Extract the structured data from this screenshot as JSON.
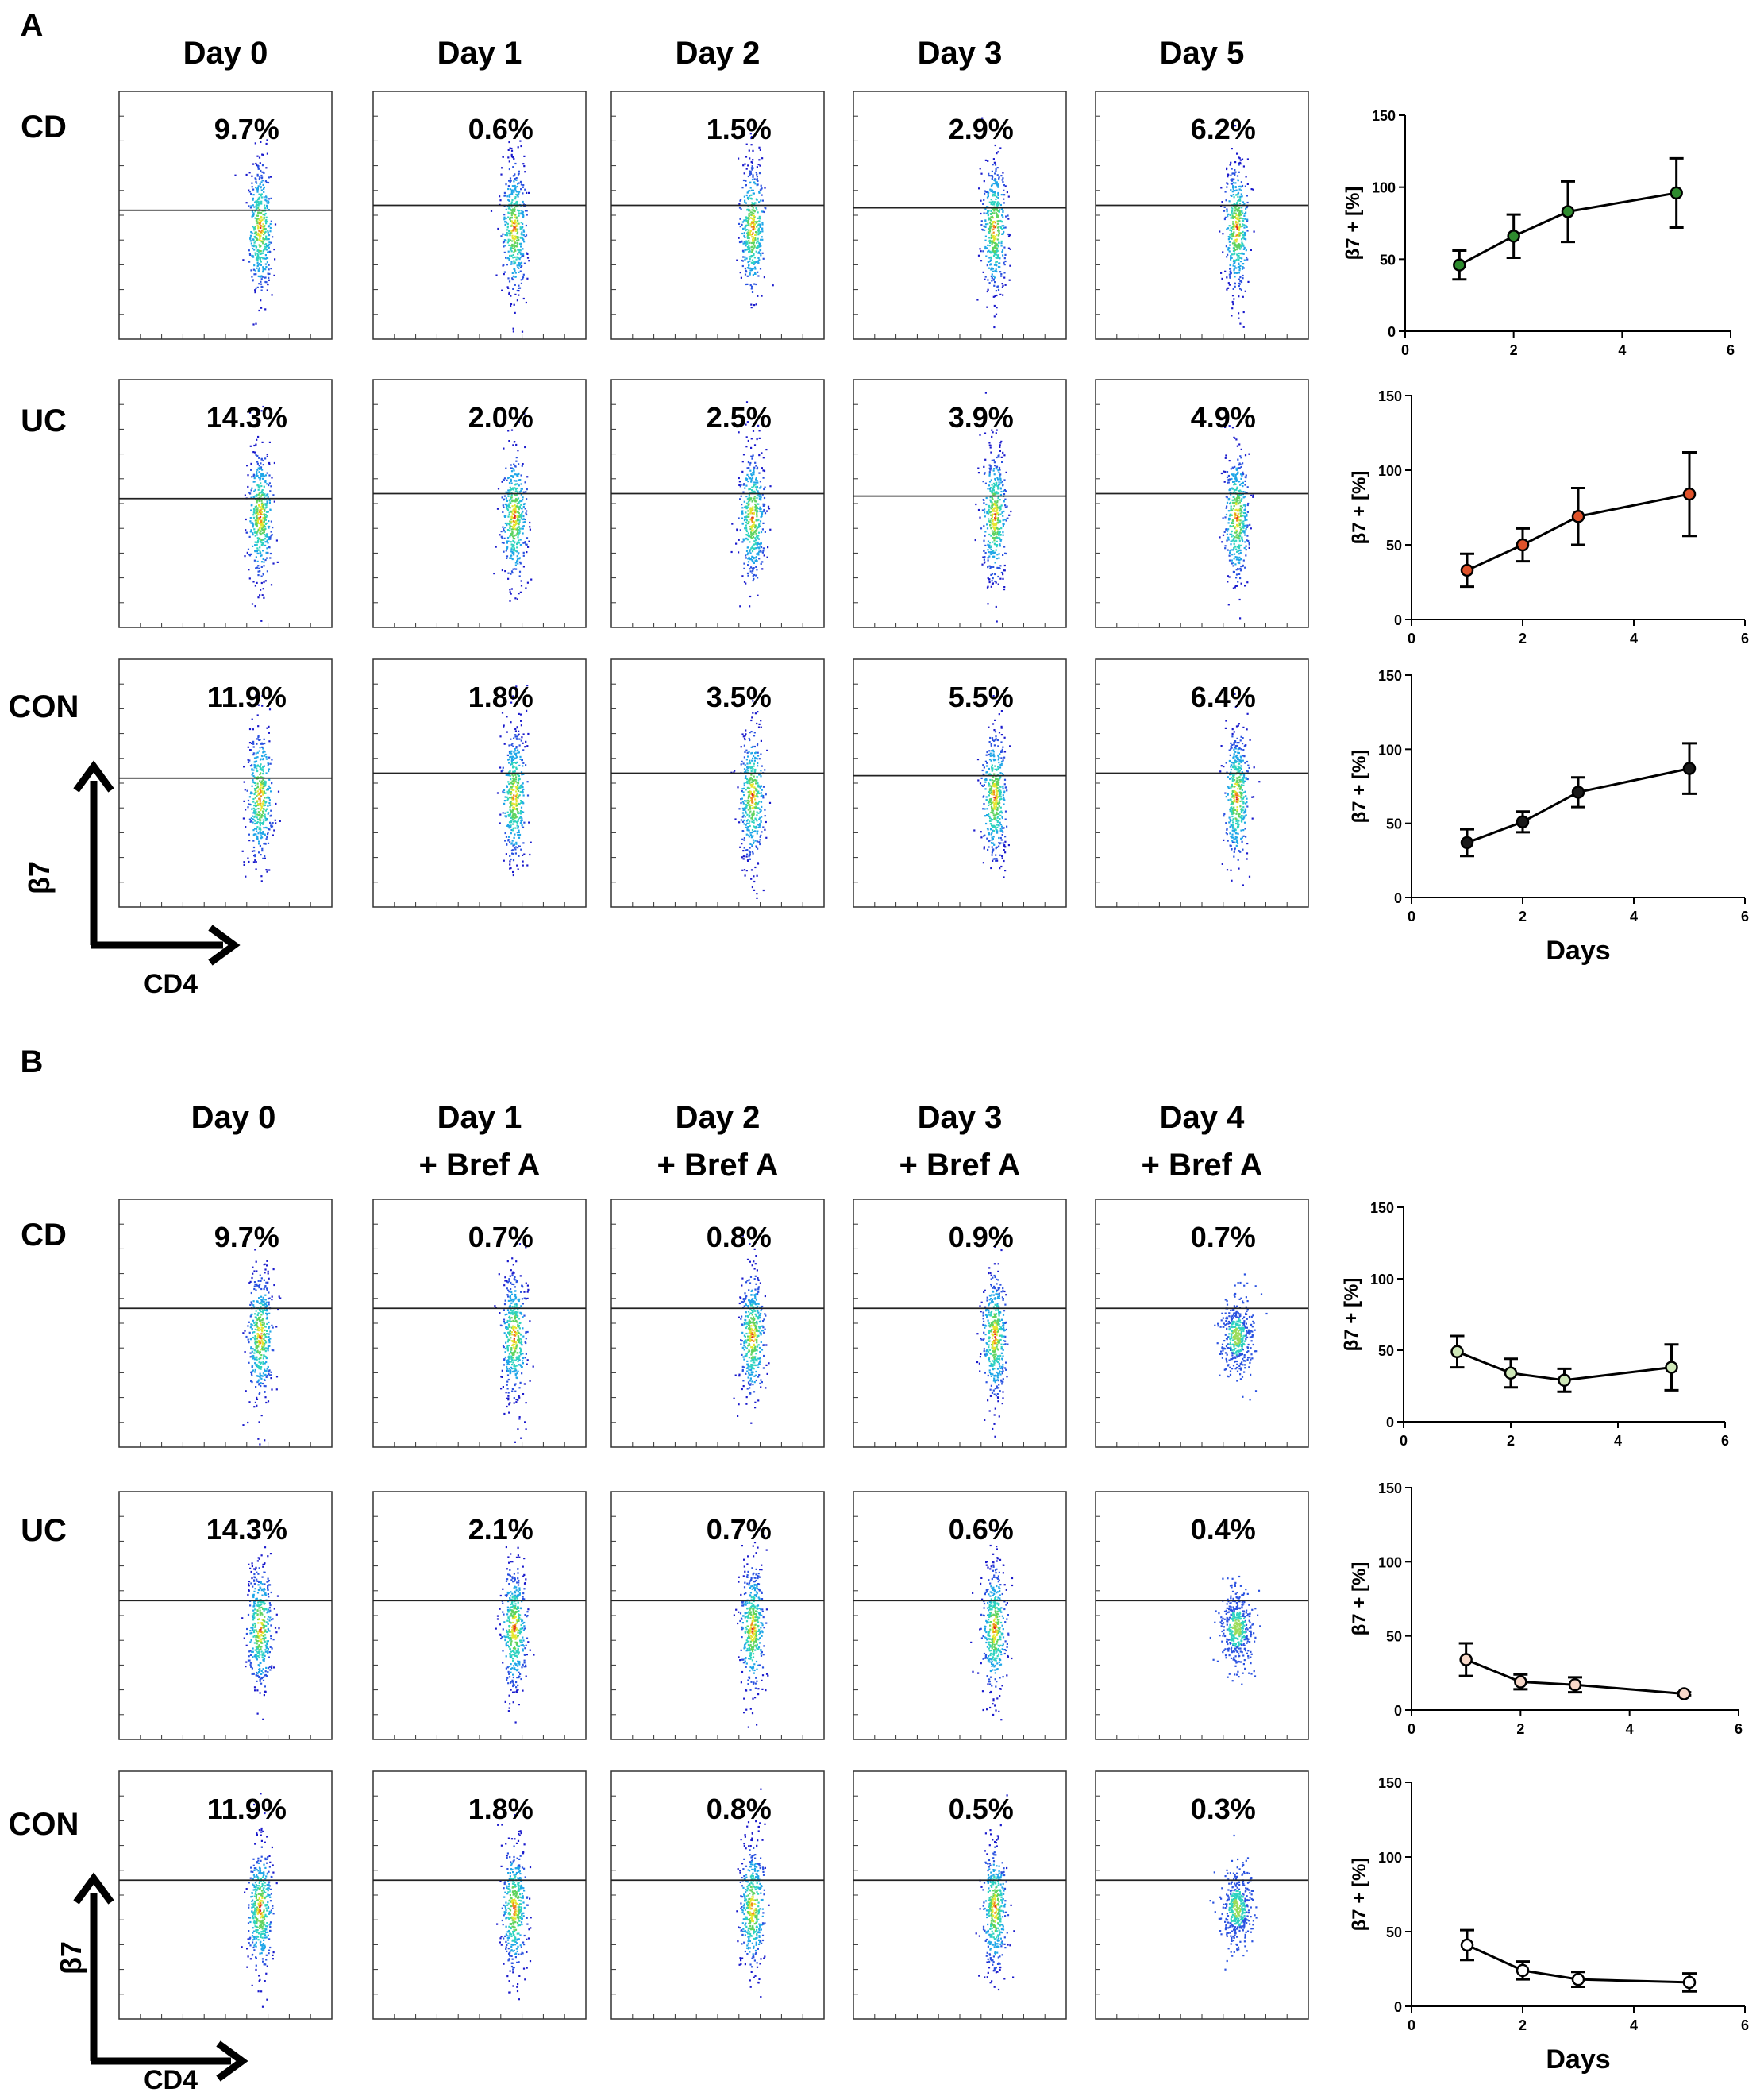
{
  "figure": {
    "panels": [
      {
        "letter": "A",
        "day_headers": [
          [
            "Day 0"
          ],
          [
            "Day 1"
          ],
          [
            "Day 2"
          ],
          [
            "Day 3"
          ],
          [
            "Day 5"
          ]
        ],
        "rows": [
          {
            "label": "CD",
            "percents": [
              "9.7%",
              "0.6%",
              "1.5%",
              "2.9%",
              "6.2%"
            ]
          },
          {
            "label": "UC",
            "percents": [
              "14.3%",
              "2.0%",
              "2.5%",
              "3.9%",
              "4.9%"
            ]
          },
          {
            "label": "CON",
            "percents": [
              "11.9%",
              "1.8%",
              "3.5%",
              "5.5%",
              "6.4%"
            ]
          }
        ],
        "y_axis_label": "β7",
        "x_axis_label": "CD4"
      },
      {
        "letter": "B",
        "day_headers": [
          [
            "Day 0"
          ],
          [
            "Day 1",
            "+ Bref A"
          ],
          [
            "Day 2",
            "+ Bref A"
          ],
          [
            "Day 3",
            "+ Bref A"
          ],
          [
            "Day 4",
            "+ Bref A"
          ]
        ],
        "rows": [
          {
            "label": "CD",
            "percents": [
              "9.7%",
              "0.7%",
              "0.8%",
              "0.9%",
              "0.7%"
            ]
          },
          {
            "label": "UC",
            "percents": [
              "14.3%",
              "2.1%",
              "0.7%",
              "0.6%",
              "0.4%"
            ]
          },
          {
            "label": "CON",
            "percents": [
              "11.9%",
              "1.8%",
              "0.8%",
              "0.5%",
              "0.3%"
            ]
          }
        ],
        "y_axis_label": "β7",
        "x_axis_label": "CD4"
      }
    ]
  },
  "chart_data": [
    {
      "type": "line",
      "panel": "A",
      "group": "CD",
      "marker_color": "#2e8b2e",
      "x": [
        1,
        2,
        3,
        5
      ],
      "y": [
        46,
        66,
        83,
        96
      ],
      "err": [
        10,
        15,
        21,
        24
      ],
      "xlim": [
        0,
        6
      ],
      "ylim": [
        0,
        150
      ],
      "xticks": [
        0,
        2,
        4,
        6
      ],
      "yticks": [
        0,
        50,
        100,
        150
      ],
      "ylabel": "β7 + [%]",
      "xlabel": ""
    },
    {
      "type": "line",
      "panel": "A",
      "group": "UC",
      "marker_color": "#e0522a",
      "x": [
        1,
        2,
        3,
        5
      ],
      "y": [
        33,
        50,
        69,
        84
      ],
      "err": [
        11,
        11,
        19,
        28
      ],
      "xlim": [
        0,
        6
      ],
      "ylim": [
        0,
        150
      ],
      "xticks": [
        0,
        2,
        4,
        6
      ],
      "yticks": [
        0,
        50,
        100,
        150
      ],
      "ylabel": "β7 + [%]",
      "xlabel": ""
    },
    {
      "type": "line",
      "panel": "A",
      "group": "CON",
      "marker_color": "#1a1a1a",
      "x": [
        1,
        2,
        3,
        5
      ],
      "y": [
        37,
        51,
        71,
        87
      ],
      "err": [
        9,
        7,
        10,
        17
      ],
      "xlim": [
        0,
        6
      ],
      "ylim": [
        0,
        150
      ],
      "xticks": [
        0,
        2,
        4,
        6
      ],
      "yticks": [
        0,
        50,
        100,
        150
      ],
      "ylabel": "β7 + [%]",
      "xlabel": "Days"
    },
    {
      "type": "line",
      "panel": "B",
      "group": "CD",
      "marker_color": "#cfe8b8",
      "x": [
        1,
        2,
        3,
        5
      ],
      "y": [
        49,
        34,
        29,
        38
      ],
      "err": [
        11,
        10,
        8,
        16
      ],
      "xlim": [
        0,
        6
      ],
      "ylim": [
        0,
        150
      ],
      "xticks": [
        0,
        2,
        4,
        6
      ],
      "yticks": [
        0,
        50,
        100,
        150
      ],
      "ylabel": "β7 + [%]",
      "xlabel": ""
    },
    {
      "type": "line",
      "panel": "B",
      "group": "UC",
      "marker_color": "#f6d7c8",
      "x": [
        1,
        2,
        3,
        5
      ],
      "y": [
        34,
        19,
        17,
        11
      ],
      "err": [
        11,
        5,
        5,
        1
      ],
      "xlim": [
        0,
        6
      ],
      "ylim": [
        0,
        150
      ],
      "xticks": [
        0,
        2,
        4,
        6
      ],
      "yticks": [
        0,
        50,
        100,
        150
      ],
      "ylabel": "β7 + [%]",
      "xlabel": ""
    },
    {
      "type": "line",
      "panel": "B",
      "group": "CON",
      "marker_color": "#ffffff",
      "x": [
        1,
        2,
        3,
        5
      ],
      "y": [
        41,
        24,
        18,
        16
      ],
      "err": [
        10,
        6,
        5,
        6
      ],
      "xlim": [
        0,
        6
      ],
      "ylim": [
        0,
        150
      ],
      "xticks": [
        0,
        2,
        4,
        6
      ],
      "yticks": [
        0,
        50,
        100,
        150
      ],
      "ylabel": "β7 + [%]",
      "xlabel": "Days"
    }
  ]
}
